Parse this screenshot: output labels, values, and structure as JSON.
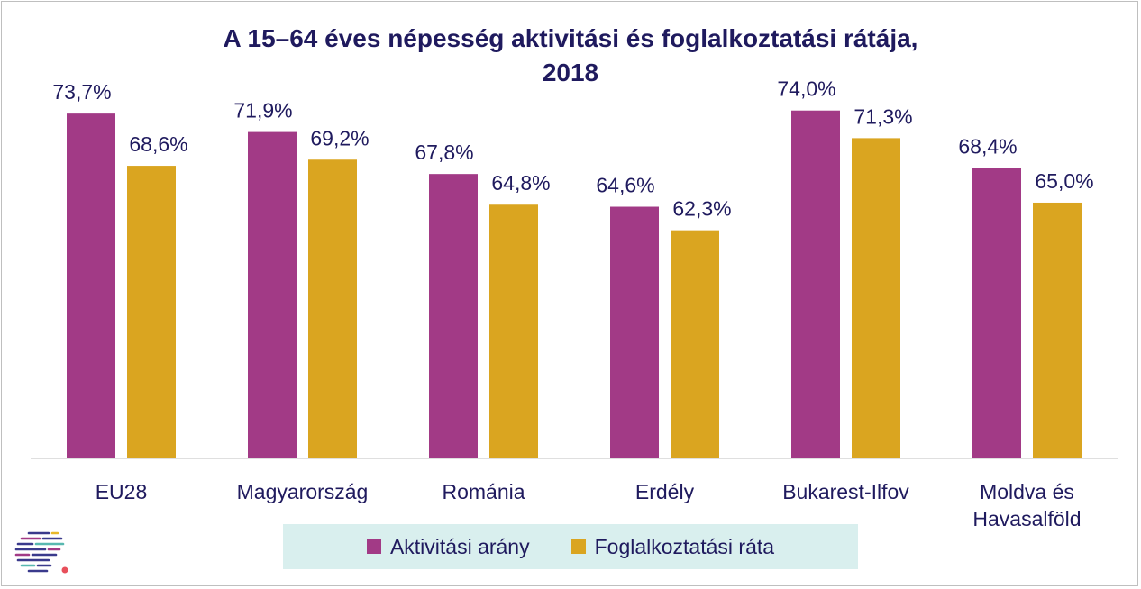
{
  "chart_data": {
    "type": "bar",
    "title_lines": [
      "A 15–64 éves népesség aktivitási és foglalkoztatási rátája,",
      "2018"
    ],
    "categories": [
      [
        "EU28"
      ],
      [
        "Magyarország"
      ],
      [
        "Románia"
      ],
      [
        "Erdély"
      ],
      [
        "Bukarest-Ilfov"
      ],
      [
        "Moldva és",
        "Havasalföld"
      ]
    ],
    "series": [
      {
        "name": "Aktivitási arány",
        "color": "#a23a86",
        "values": [
          73.7,
          71.9,
          67.8,
          64.6,
          74.0,
          68.4
        ],
        "labels": [
          "73,7%",
          "71,9%",
          "67,8%",
          "64,6%",
          "74,0%",
          "68,4%"
        ]
      },
      {
        "name": "Foglalkoztatási ráta",
        "color": "#daa520",
        "values": [
          68.6,
          69.2,
          64.8,
          62.3,
          71.3,
          65.0
        ],
        "labels": [
          "68,6%",
          "69,2%",
          "64,8%",
          "62,3%",
          "71,3%",
          "65,0%"
        ]
      }
    ],
    "ylim": [
      40,
      76
    ],
    "grid": false,
    "legend_position": "bottom"
  },
  "colors": {
    "title": "#1f1a5e",
    "legend_bg": "#d9efee",
    "axis": "#bfbfbf"
  },
  "logo": {
    "icon": "striped-circle-logo-icon"
  }
}
